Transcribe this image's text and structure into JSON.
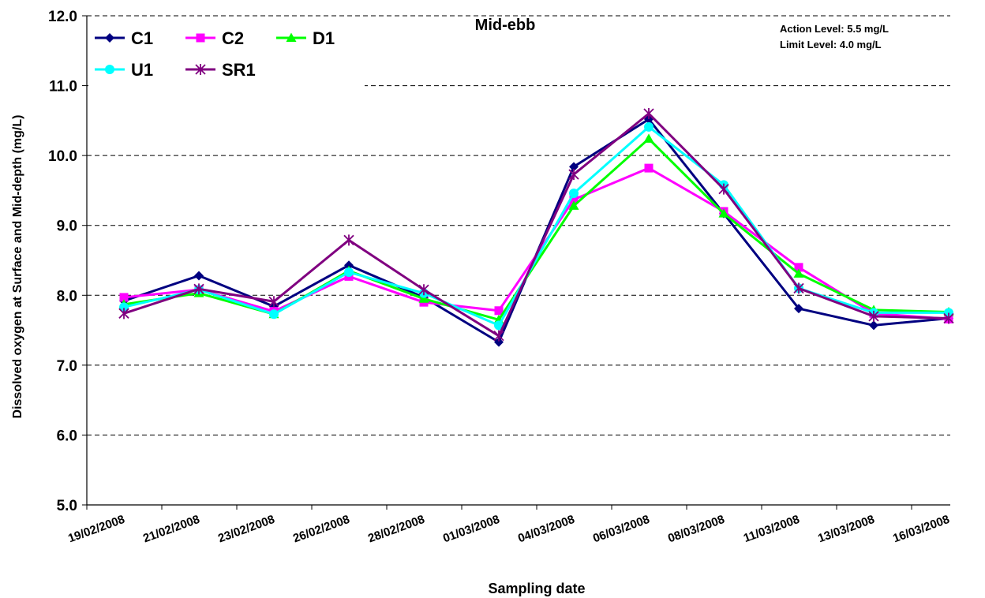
{
  "chart_data": {
    "type": "line",
    "title": "Mid-ebb",
    "xlabel": "Sampling date",
    "ylabel": "Dissolved oxygen at Surface and Mid-depth (mg/L)",
    "ylim": [
      5.0,
      12.0
    ],
    "yticks": [
      "5.0",
      "6.0",
      "7.0",
      "8.0",
      "9.0",
      "10.0",
      "11.0",
      "12.0"
    ],
    "grid": "horizontal dashed",
    "legend_position": "top-left",
    "categories": [
      "19/02/2008",
      "21/02/2008",
      "23/02/2008",
      "26/02/2008",
      "28/02/2008",
      "01/03/2008",
      "04/03/2008",
      "06/03/2008",
      "08/03/2008",
      "11/03/2008",
      "13/03/2008",
      "16/03/2008"
    ],
    "annotations": [
      "Action Level: 5.5 mg/L",
      "Limit Level: 4.0 mg/L"
    ],
    "series": [
      {
        "name": "C1",
        "color": "#000080",
        "marker": "diamond",
        "values": [
          7.92,
          8.28,
          7.84,
          8.43,
          7.97,
          7.33,
          9.84,
          10.52,
          9.17,
          7.81,
          7.57,
          7.67
        ]
      },
      {
        "name": "C2",
        "color": "#ff00ff",
        "marker": "square",
        "values": [
          7.97,
          8.08,
          7.77,
          8.27,
          7.9,
          7.78,
          9.37,
          9.82,
          9.2,
          8.4,
          7.74,
          7.66
        ]
      },
      {
        "name": "D1",
        "color": "#00ff00",
        "marker": "triangle",
        "values": [
          7.87,
          8.03,
          7.73,
          8.35,
          7.95,
          7.65,
          9.28,
          10.24,
          9.17,
          8.31,
          7.79,
          7.76
        ]
      },
      {
        "name": "U1",
        "color": "#00ffff",
        "marker": "circle",
        "values": [
          7.83,
          8.08,
          7.73,
          8.33,
          8.03,
          7.57,
          9.46,
          10.41,
          9.58,
          8.1,
          7.75,
          7.75
        ]
      },
      {
        "name": "SR1",
        "color": "#800080",
        "marker": "star",
        "values": [
          7.74,
          8.09,
          7.91,
          8.79,
          8.08,
          7.42,
          9.73,
          10.6,
          9.52,
          8.1,
          7.7,
          7.67
        ]
      }
    ]
  }
}
